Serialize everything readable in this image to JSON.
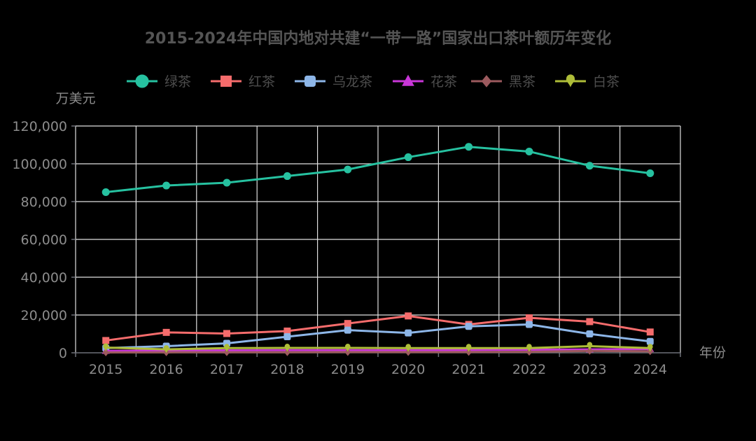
{
  "chart_data": {
    "type": "line",
    "title": "2015-2024年中国内地对共建“一带一路”国家出口茶叶额历年变化",
    "ylabel": "万美元",
    "xlabel": "年份",
    "categories": [
      "2015",
      "2016",
      "2017",
      "2018",
      "2019",
      "2020",
      "2021",
      "2022",
      "2023",
      "2024"
    ],
    "ylim": [
      0,
      120000
    ],
    "yticks": [
      "0",
      "20,000",
      "40,000",
      "60,000",
      "80,000",
      "100,000",
      "120,000"
    ],
    "ytick_values": [
      0,
      20000,
      40000,
      60000,
      80000,
      100000,
      120000
    ],
    "grid": true,
    "legend_position": "top-center",
    "series": [
      {
        "name": "绿茶",
        "color": "#26c1a0",
        "marker": "circle",
        "values": [
          85000,
          88500,
          90000,
          93500,
          97000,
          103500,
          109000,
          106500,
          99000,
          95000
        ]
      },
      {
        "name": "红茶",
        "color": "#f56c6c",
        "marker": "rect",
        "values": [
          6500,
          10800,
          10200,
          11500,
          15500,
          19500,
          15000,
          18500,
          16500,
          11000
        ]
      },
      {
        "name": "乌龙茶",
        "color": "#8db6e8",
        "marker": "roundRect",
        "values": [
          2500,
          3500,
          5000,
          8500,
          12000,
          10500,
          14000,
          15000,
          10000,
          6000
        ]
      },
      {
        "name": "花茶",
        "color": "#c936d8",
        "marker": "triangle",
        "values": [
          1000,
          1200,
          1300,
          1400,
          1400,
          1400,
          1500,
          1600,
          1800,
          2000
        ]
      },
      {
        "name": "黑茶",
        "color": "#9c5a5e",
        "marker": "diamond",
        "values": [
          200,
          250,
          300,
          300,
          350,
          350,
          400,
          500,
          1000,
          800
        ]
      },
      {
        "name": "白茶",
        "color": "#aebd38",
        "marker": "pin",
        "values": [
          2800,
          1800,
          2500,
          2600,
          2600,
          2500,
          2500,
          2500,
          3500,
          2500
        ]
      }
    ]
  }
}
